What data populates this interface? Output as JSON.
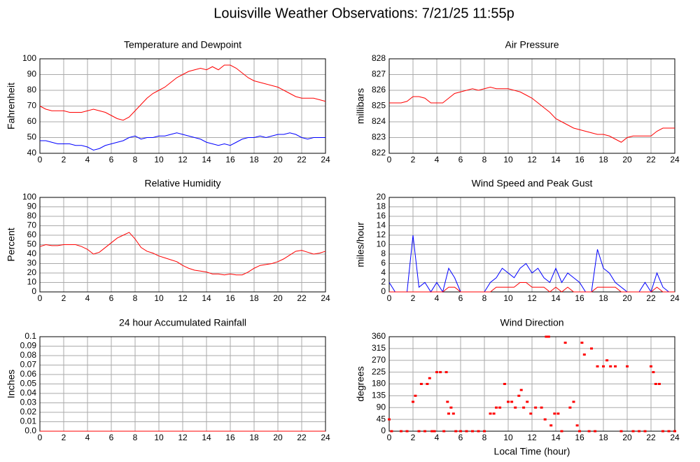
{
  "title": "Louisville Weather Observations: 7/21/25 11:55p",
  "chart_data": [
    {
      "type": "line",
      "title": "Temperature and Dewpoint",
      "ylabel": "Fahrenheit",
      "x": [
        0,
        0.5,
        1,
        1.5,
        2,
        2.5,
        3,
        3.5,
        4,
        4.5,
        5,
        5.5,
        6,
        6.5,
        7,
        7.5,
        8,
        8.5,
        9,
        9.5,
        10,
        10.5,
        11,
        11.5,
        12,
        12.5,
        13,
        13.5,
        14,
        14.5,
        15,
        15.5,
        16,
        16.5,
        17,
        17.5,
        18,
        18.5,
        19,
        19.5,
        20,
        20.5,
        21,
        21.5,
        22,
        22.5,
        23,
        23.5,
        24
      ],
      "series": [
        {
          "color": "#ff0000",
          "values": [
            70,
            68,
            67,
            67,
            67,
            66,
            66,
            66,
            67,
            68,
            67,
            66,
            64,
            62,
            61,
            63,
            67,
            71,
            75,
            78,
            80,
            82,
            85,
            88,
            90,
            92,
            93,
            94,
            93,
            95,
            93,
            96,
            96,
            94,
            91,
            88,
            86,
            85,
            84,
            83,
            82,
            80,
            78,
            76,
            75,
            75,
            75,
            74,
            73
          ]
        },
        {
          "color": "#0000ff",
          "values": [
            48,
            48,
            47,
            46,
            46,
            46,
            45,
            45,
            44,
            42,
            43,
            45,
            46,
            47,
            48,
            50,
            51,
            49,
            50,
            50,
            51,
            51,
            52,
            53,
            52,
            51,
            50,
            49,
            47,
            46,
            45,
            46,
            45,
            47,
            49,
            50,
            50,
            51,
            50,
            51,
            52,
            52,
            53,
            52,
            50,
            49,
            50,
            50,
            50
          ]
        }
      ],
      "xlim": [
        0,
        24
      ],
      "xticks": [
        0,
        2,
        4,
        6,
        8,
        10,
        12,
        14,
        16,
        18,
        20,
        22,
        24
      ],
      "ylim": [
        40,
        100
      ],
      "yticks": [
        40,
        50,
        60,
        70,
        80,
        90,
        100
      ],
      "grid": true
    },
    {
      "type": "line",
      "title": "Air Pressure",
      "ylabel": "millibars",
      "x": [
        0,
        0.5,
        1,
        1.5,
        2,
        2.5,
        3,
        3.5,
        4,
        4.5,
        5,
        5.5,
        6,
        6.5,
        7,
        7.5,
        8,
        8.5,
        9,
        9.5,
        10,
        10.5,
        11,
        11.5,
        12,
        12.5,
        13,
        13.5,
        14,
        14.5,
        15,
        15.5,
        16,
        16.5,
        17,
        17.5,
        18,
        18.5,
        19,
        19.5,
        20,
        20.5,
        21,
        21.5,
        22,
        22.5,
        23,
        23.5,
        24
      ],
      "series": [
        {
          "color": "#ff0000",
          "values": [
            825.2,
            825.2,
            825.2,
            825.3,
            825.6,
            825.6,
            825.5,
            825.2,
            825.2,
            825.2,
            825.5,
            825.8,
            825.9,
            826.0,
            826.1,
            826.0,
            826.1,
            826.2,
            826.1,
            826.1,
            826.1,
            826.0,
            825.9,
            825.7,
            825.5,
            825.2,
            824.9,
            824.6,
            824.2,
            824.0,
            823.8,
            823.6,
            823.5,
            823.4,
            823.3,
            823.2,
            823.2,
            823.1,
            822.9,
            822.7,
            823.0,
            823.1,
            823.1,
            823.1,
            823.1,
            823.4,
            823.6,
            823.6,
            823.6
          ]
        }
      ],
      "xlim": [
        0,
        24
      ],
      "xticks": [
        0,
        2,
        4,
        6,
        8,
        10,
        12,
        14,
        16,
        18,
        20,
        22,
        24
      ],
      "ylim": [
        822,
        828
      ],
      "yticks": [
        822,
        823,
        824,
        825,
        826,
        827,
        828
      ],
      "grid": true
    },
    {
      "type": "line",
      "title": "Relative Humidity",
      "ylabel": "Percent",
      "x": [
        0,
        0.5,
        1,
        1.5,
        2,
        2.5,
        3,
        3.5,
        4,
        4.5,
        5,
        5.5,
        6,
        6.5,
        7,
        7.5,
        8,
        8.5,
        9,
        9.5,
        10,
        10.5,
        11,
        11.5,
        12,
        12.5,
        13,
        13.5,
        14,
        14.5,
        15,
        15.5,
        16,
        16.5,
        17,
        17.5,
        18,
        18.5,
        19,
        19.5,
        20,
        20.5,
        21,
        21.5,
        22,
        22.5,
        23,
        23.5,
        24
      ],
      "series": [
        {
          "color": "#ff0000",
          "values": [
            48,
            50,
            49,
            49,
            50,
            50,
            50,
            48,
            45,
            40,
            42,
            47,
            52,
            57,
            60,
            63,
            56,
            47,
            43,
            41,
            38,
            36,
            34,
            32,
            28,
            25,
            23,
            22,
            21,
            19,
            19,
            18,
            19,
            18,
            18,
            21,
            25,
            28,
            29,
            30,
            32,
            35,
            39,
            43,
            44,
            42,
            40,
            41,
            43
          ]
        }
      ],
      "xlim": [
        0,
        24
      ],
      "xticks": [
        0,
        2,
        4,
        6,
        8,
        10,
        12,
        14,
        16,
        18,
        20,
        22,
        24
      ],
      "ylim": [
        0,
        100
      ],
      "yticks": [
        0,
        10,
        20,
        30,
        40,
        50,
        60,
        70,
        80,
        90,
        100
      ],
      "grid": true
    },
    {
      "type": "line",
      "title": "Wind Speed and Peak Gust",
      "ylabel": "miles/hour",
      "x": [
        0,
        0.5,
        1,
        1.5,
        2,
        2.5,
        3,
        3.5,
        4,
        4.5,
        5,
        5.5,
        6,
        6.5,
        7,
        7.5,
        8,
        8.5,
        9,
        9.5,
        10,
        10.5,
        11,
        11.5,
        12,
        12.5,
        13,
        13.5,
        14,
        14.5,
        15,
        15.5,
        16,
        16.5,
        17,
        17.5,
        18,
        18.5,
        19,
        19.5,
        20,
        20.5,
        21,
        21.5,
        22,
        22.5,
        23,
        23.5,
        24
      ],
      "series": [
        {
          "color": "#0000ff",
          "values": [
            2,
            0,
            0,
            0,
            12,
            1,
            2,
            0,
            2,
            0,
            5,
            3,
            0,
            0,
            0,
            0,
            0,
            2,
            3,
            5,
            4,
            3,
            5,
            6,
            4,
            5,
            3,
            2,
            5,
            2,
            4,
            3,
            2,
            0,
            0,
            9,
            5,
            4,
            2,
            1,
            0,
            0,
            0,
            2,
            0,
            4,
            1,
            0,
            0
          ]
        },
        {
          "color": "#ff0000",
          "values": [
            0,
            0,
            0,
            0,
            0,
            0,
            0,
            0,
            0,
            0,
            1,
            1,
            0,
            0,
            0,
            0,
            0,
            0,
            1,
            1,
            1,
            1,
            2,
            2,
            1,
            1,
            1,
            0,
            1,
            0,
            1,
            0,
            0,
            0,
            0,
            1,
            1,
            1,
            1,
            0,
            0,
            0,
            0,
            0,
            0,
            1,
            0,
            0,
            0
          ]
        }
      ],
      "xlim": [
        0,
        24
      ],
      "xticks": [
        0,
        2,
        4,
        6,
        8,
        10,
        12,
        14,
        16,
        18,
        20,
        22,
        24
      ],
      "ylim": [
        0,
        20
      ],
      "yticks": [
        0,
        2,
        4,
        6,
        8,
        10,
        12,
        14,
        16,
        18,
        20
      ],
      "grid": true
    },
    {
      "type": "line",
      "title": "24 hour Accumulated Rainfall",
      "ylabel": "Inches",
      "x": [
        0,
        24
      ],
      "series": [
        {
          "color": "#ff0000",
          "values": [
            0,
            0
          ]
        }
      ],
      "xlim": [
        0,
        24
      ],
      "xticks": [
        0,
        2,
        4,
        6,
        8,
        10,
        12,
        14,
        16,
        18,
        20,
        22,
        24
      ],
      "ylim": [
        0,
        0.1
      ],
      "yticks": [
        {
          "value": 0,
          "label": "0.0"
        },
        0.01,
        0.02,
        0.03,
        0.04,
        0.05,
        0.06,
        0.07,
        0.08,
        0.09,
        0.1
      ],
      "grid": true
    },
    {
      "type": "scatter",
      "title": "Wind Direction",
      "ylabel": "degrees",
      "xlabel": "Local Time (hour)",
      "x": [
        0,
        0.2,
        1,
        1.5,
        2,
        2.2,
        2.5,
        2.7,
        3,
        3.2,
        3.4,
        3.6,
        3.8,
        4,
        4.3,
        4.6,
        4.8,
        4.9,
        5,
        5.2,
        5.4,
        5.6,
        6,
        6.5,
        7,
        7.5,
        8,
        8.5,
        8.8,
        9,
        9.3,
        9.7,
        10,
        10.3,
        10.6,
        10.9,
        11.1,
        11.3,
        11.6,
        11.9,
        12.3,
        12.8,
        13.1,
        13.2,
        13.4,
        13.6,
        13.9,
        14.2,
        14.5,
        14.8,
        15.2,
        15.5,
        15.8,
        16,
        16.2,
        16.4,
        16.8,
        17,
        17.3,
        17.5,
        18,
        18.3,
        18.6,
        19,
        19.5,
        20,
        20.5,
        21,
        21.5,
        22,
        22.2,
        22.4,
        22.7,
        23,
        23.5,
        24
      ],
      "color": "#ff0000",
      "values": [
        45,
        0,
        0,
        0,
        112,
        135,
        0,
        180,
        0,
        180,
        202,
        0,
        0,
        225,
        225,
        0,
        225,
        112,
        67,
        90,
        67,
        0,
        0,
        0,
        0,
        0,
        0,
        67,
        67,
        90,
        90,
        180,
        112,
        112,
        90,
        135,
        157,
        90,
        112,
        67,
        90,
        90,
        45,
        360,
        360,
        22,
        67,
        67,
        0,
        337,
        90,
        112,
        22,
        0,
        337,
        292,
        0,
        315,
        0,
        247,
        247,
        270,
        247,
        247,
        0,
        247,
        0,
        0,
        0,
        247,
        225,
        180,
        180,
        0,
        0,
        0
      ],
      "xlim": [
        0,
        24
      ],
      "xticks": [
        0,
        2,
        4,
        6,
        8,
        10,
        12,
        14,
        16,
        18,
        20,
        22,
        24
      ],
      "ylim": [
        0,
        360
      ],
      "yticks": [
        0,
        45,
        90,
        135,
        180,
        225,
        270,
        315,
        360
      ],
      "grid": true
    }
  ]
}
